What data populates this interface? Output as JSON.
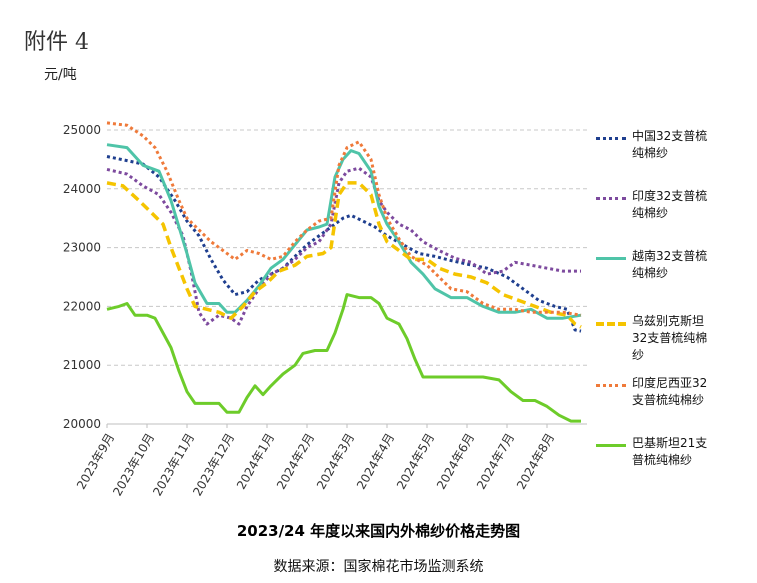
{
  "annex_label": "附件 4",
  "unit_label": "元/吨",
  "footer": {
    "title": "2023/24 年度以来国内外棉纱价格走势图",
    "source": "数据来源：国家棉花市场监测系统"
  },
  "chart_data": {
    "type": "line",
    "title": "2023/24 年度以来国内外棉纱价格走势图",
    "ylabel": "元/吨",
    "ylim": [
      20000,
      25000
    ],
    "yticks": [
      20000,
      21000,
      22000,
      23000,
      24000,
      25000
    ],
    "grid": true,
    "legend_placement": "right",
    "x_range": [
      0,
      12
    ],
    "x_ticks": [
      {
        "label": "2023年9月",
        "pos": 0
      },
      {
        "label": "2023年10月",
        "pos": 1
      },
      {
        "label": "2023年11月",
        "pos": 2
      },
      {
        "label": "2023年12月",
        "pos": 3
      },
      {
        "label": "2024年1月",
        "pos": 4
      },
      {
        "label": "2024年2月",
        "pos": 5
      },
      {
        "label": "2024年3月",
        "pos": 6
      },
      {
        "label": "2024年4月",
        "pos": 7
      },
      {
        "label": "2024年5月",
        "pos": 8
      },
      {
        "label": "2024年6月",
        "pos": 9
      },
      {
        "label": "2024年7月",
        "pos": 10
      },
      {
        "label": "2024年8月",
        "pos": 11
      }
    ],
    "series": [
      {
        "name": "中国32支普梳纯棉纱",
        "color": "#1f3f8f",
        "dash": "dot",
        "points": [
          [
            0,
            24550
          ],
          [
            0.5,
            24480
          ],
          [
            0.9,
            24420
          ],
          [
            1.3,
            24200
          ],
          [
            1.7,
            23800
          ],
          [
            2.0,
            23450
          ],
          [
            2.3,
            23200
          ],
          [
            2.6,
            22800
          ],
          [
            2.9,
            22450
          ],
          [
            3.2,
            22200
          ],
          [
            3.5,
            22250
          ],
          [
            3.8,
            22450
          ],
          [
            4.1,
            22550
          ],
          [
            4.4,
            22650
          ],
          [
            4.7,
            22850
          ],
          [
            5.0,
            23050
          ],
          [
            5.4,
            23250
          ],
          [
            5.7,
            23400
          ],
          [
            5.9,
            23500
          ],
          [
            6.1,
            23550
          ],
          [
            6.4,
            23450
          ],
          [
            6.7,
            23350
          ],
          [
            7.0,
            23200
          ],
          [
            7.4,
            23050
          ],
          [
            7.8,
            22900
          ],
          [
            8.2,
            22850
          ],
          [
            8.6,
            22780
          ],
          [
            9.0,
            22720
          ],
          [
            9.5,
            22650
          ],
          [
            10.0,
            22500
          ],
          [
            10.4,
            22300
          ],
          [
            10.8,
            22100
          ],
          [
            11.2,
            22000
          ],
          [
            11.5,
            21950
          ],
          [
            11.7,
            21600
          ],
          [
            11.85,
            21580
          ]
        ]
      },
      {
        "name": "印度32支普梳纯棉纱",
        "color": "#7d4a9e",
        "dash": "dot",
        "points": [
          [
            0,
            24330
          ],
          [
            0.5,
            24250
          ],
          [
            0.9,
            24050
          ],
          [
            1.3,
            23900
          ],
          [
            1.6,
            23600
          ],
          [
            1.9,
            23200
          ],
          [
            2.1,
            22600
          ],
          [
            2.3,
            21900
          ],
          [
            2.5,
            21700
          ],
          [
            2.8,
            21850
          ],
          [
            3.1,
            21800
          ],
          [
            3.3,
            21700
          ],
          [
            3.5,
            22000
          ],
          [
            3.8,
            22300
          ],
          [
            4.1,
            22550
          ],
          [
            4.4,
            22650
          ],
          [
            4.7,
            22800
          ],
          [
            5.0,
            23000
          ],
          [
            5.3,
            23100
          ],
          [
            5.6,
            23400
          ],
          [
            5.8,
            24100
          ],
          [
            6.0,
            24300
          ],
          [
            6.3,
            24350
          ],
          [
            6.6,
            24200
          ],
          [
            6.8,
            23800
          ],
          [
            7.0,
            23600
          ],
          [
            7.3,
            23400
          ],
          [
            7.6,
            23300
          ],
          [
            7.9,
            23100
          ],
          [
            8.3,
            22950
          ],
          [
            8.7,
            22820
          ],
          [
            9.1,
            22750
          ],
          [
            9.5,
            22550
          ],
          [
            9.9,
            22600
          ],
          [
            10.2,
            22750
          ],
          [
            10.6,
            22700
          ],
          [
            11.0,
            22650
          ],
          [
            11.4,
            22600
          ],
          [
            11.85,
            22600
          ]
        ]
      },
      {
        "name": "越南32支普梳纯棉纱",
        "color": "#4fc4a8",
        "dash": "solid",
        "points": [
          [
            0,
            24750
          ],
          [
            0.5,
            24700
          ],
          [
            0.9,
            24400
          ],
          [
            1.3,
            24300
          ],
          [
            1.6,
            23800
          ],
          [
            1.8,
            23350
          ],
          [
            2.0,
            22900
          ],
          [
            2.2,
            22400
          ],
          [
            2.5,
            22050
          ],
          [
            2.8,
            22050
          ],
          [
            3.0,
            21900
          ],
          [
            3.2,
            21900
          ],
          [
            3.5,
            22100
          ],
          [
            3.8,
            22350
          ],
          [
            4.1,
            22650
          ],
          [
            4.4,
            22800
          ],
          [
            4.7,
            23050
          ],
          [
            5.0,
            23300
          ],
          [
            5.3,
            23350
          ],
          [
            5.5,
            23400
          ],
          [
            5.7,
            24200
          ],
          [
            5.9,
            24500
          ],
          [
            6.1,
            24650
          ],
          [
            6.3,
            24600
          ],
          [
            6.6,
            24300
          ],
          [
            6.8,
            23700
          ],
          [
            7.0,
            23400
          ],
          [
            7.3,
            23100
          ],
          [
            7.6,
            22750
          ],
          [
            7.9,
            22550
          ],
          [
            8.2,
            22300
          ],
          [
            8.6,
            22150
          ],
          [
            9.0,
            22150
          ],
          [
            9.4,
            22000
          ],
          [
            9.8,
            21900
          ],
          [
            10.2,
            21900
          ],
          [
            10.6,
            21950
          ],
          [
            11.0,
            21800
          ],
          [
            11.4,
            21800
          ],
          [
            11.85,
            21850
          ]
        ]
      },
      {
        "name": "乌兹别克斯坦32支普梳纯棉纱",
        "color": "#f5c400",
        "dash": "dash",
        "points": [
          [
            0,
            24100
          ],
          [
            0.4,
            24050
          ],
          [
            0.8,
            23800
          ],
          [
            1.1,
            23600
          ],
          [
            1.4,
            23400
          ],
          [
            1.6,
            23000
          ],
          [
            1.8,
            22650
          ],
          [
            2.0,
            22300
          ],
          [
            2.2,
            22000
          ],
          [
            2.5,
            21950
          ],
          [
            2.8,
            21900
          ],
          [
            3.1,
            21800
          ],
          [
            3.4,
            22000
          ],
          [
            3.7,
            22250
          ],
          [
            4.0,
            22400
          ],
          [
            4.3,
            22600
          ],
          [
            4.7,
            22700
          ],
          [
            5.0,
            22850
          ],
          [
            5.4,
            22900
          ],
          [
            5.6,
            23000
          ],
          [
            5.8,
            23900
          ],
          [
            6.0,
            24100
          ],
          [
            6.3,
            24100
          ],
          [
            6.6,
            23900
          ],
          [
            6.8,
            23400
          ],
          [
            7.0,
            23100
          ],
          [
            7.3,
            22950
          ],
          [
            7.6,
            22800
          ],
          [
            8.0,
            22800
          ],
          [
            8.3,
            22650
          ],
          [
            8.7,
            22550
          ],
          [
            9.1,
            22500
          ],
          [
            9.5,
            22400
          ],
          [
            9.9,
            22200
          ],
          [
            10.3,
            22100
          ],
          [
            10.7,
            22000
          ],
          [
            11.1,
            21900
          ],
          [
            11.5,
            21850
          ],
          [
            11.7,
            21700
          ],
          [
            11.85,
            21650
          ]
        ]
      },
      {
        "name": "印度尼西亚32支普梳纯棉纱",
        "color": "#ef7a3a",
        "dash": "dot",
        "points": [
          [
            0,
            25120
          ],
          [
            0.5,
            25080
          ],
          [
            0.9,
            24900
          ],
          [
            1.2,
            24700
          ],
          [
            1.5,
            24300
          ],
          [
            1.8,
            23800
          ],
          [
            2.0,
            23500
          ],
          [
            2.3,
            23300
          ],
          [
            2.6,
            23100
          ],
          [
            2.9,
            22950
          ],
          [
            3.2,
            22800
          ],
          [
            3.5,
            22950
          ],
          [
            3.8,
            22900
          ],
          [
            4.1,
            22800
          ],
          [
            4.4,
            22850
          ],
          [
            4.7,
            23100
          ],
          [
            5.0,
            23300
          ],
          [
            5.3,
            23450
          ],
          [
            5.6,
            23500
          ],
          [
            5.8,
            24400
          ],
          [
            6.0,
            24700
          ],
          [
            6.3,
            24800
          ],
          [
            6.6,
            24500
          ],
          [
            6.8,
            23900
          ],
          [
            7.0,
            23500
          ],
          [
            7.3,
            23150
          ],
          [
            7.6,
            22850
          ],
          [
            8.0,
            22700
          ],
          [
            8.3,
            22500
          ],
          [
            8.6,
            22300
          ],
          [
            9.0,
            22250
          ],
          [
            9.4,
            22050
          ],
          [
            9.8,
            21950
          ],
          [
            10.2,
            21950
          ],
          [
            10.6,
            21900
          ],
          [
            11.0,
            21900
          ],
          [
            11.4,
            21900
          ],
          [
            11.85,
            21850
          ]
        ]
      },
      {
        "name": "巴基斯坦21支普梳纯棉纱",
        "color": "#6dcc2a",
        "dash": "solid",
        "points": [
          [
            0,
            21950
          ],
          [
            0.3,
            22000
          ],
          [
            0.5,
            22050
          ],
          [
            0.7,
            21850
          ],
          [
            1.0,
            21850
          ],
          [
            1.2,
            21800
          ],
          [
            1.4,
            21550
          ],
          [
            1.6,
            21300
          ],
          [
            1.8,
            20900
          ],
          [
            2.0,
            20550
          ],
          [
            2.2,
            20350
          ],
          [
            2.5,
            20350
          ],
          [
            2.8,
            20350
          ],
          [
            3.0,
            20200
          ],
          [
            3.3,
            20200
          ],
          [
            3.5,
            20450
          ],
          [
            3.7,
            20650
          ],
          [
            3.9,
            20500
          ],
          [
            4.1,
            20650
          ],
          [
            4.4,
            20850
          ],
          [
            4.7,
            21000
          ],
          [
            4.9,
            21200
          ],
          [
            5.2,
            21250
          ],
          [
            5.5,
            21250
          ],
          [
            5.7,
            21550
          ],
          [
            5.9,
            21950
          ],
          [
            6.0,
            22200
          ],
          [
            6.3,
            22150
          ],
          [
            6.6,
            22150
          ],
          [
            6.8,
            22050
          ],
          [
            7.0,
            21800
          ],
          [
            7.3,
            21700
          ],
          [
            7.5,
            21450
          ],
          [
            7.7,
            21100
          ],
          [
            7.9,
            20800
          ],
          [
            8.2,
            20800
          ],
          [
            8.6,
            20800
          ],
          [
            9.0,
            20800
          ],
          [
            9.4,
            20800
          ],
          [
            9.8,
            20750
          ],
          [
            10.1,
            20550
          ],
          [
            10.4,
            20400
          ],
          [
            10.7,
            20400
          ],
          [
            11.0,
            20300
          ],
          [
            11.3,
            20150
          ],
          [
            11.6,
            20050
          ],
          [
            11.85,
            20050
          ]
        ]
      }
    ]
  }
}
